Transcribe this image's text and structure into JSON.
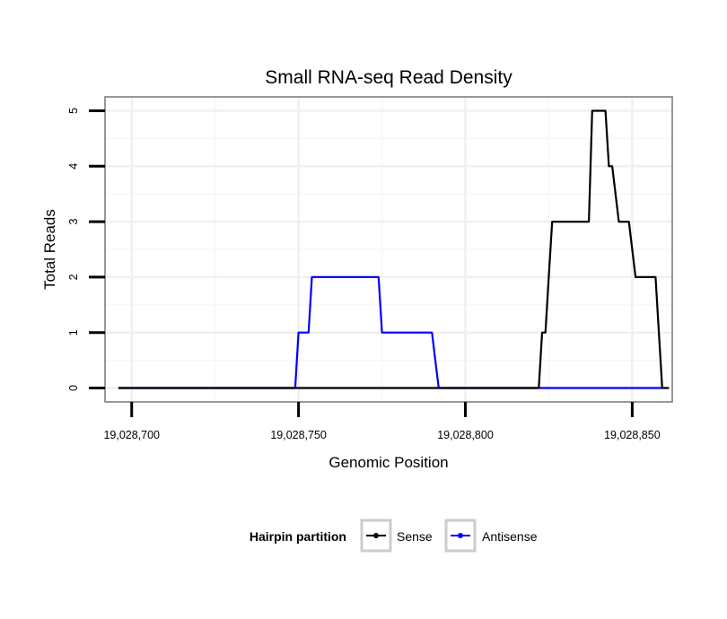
{
  "chart_data": {
    "type": "line",
    "title": "Small RNA-seq Read Density",
    "xlabel": "Genomic Position",
    "ylabel": "Total Reads",
    "xlim": [
      19028692,
      19028862
    ],
    "ylim": [
      -0.25,
      5.25
    ],
    "x_ticks": [
      19028700,
      19028750,
      19028800,
      19028850
    ],
    "x_tick_labels": [
      "19,028,700",
      "19,028,750",
      "19,028,800",
      "19,028,850"
    ],
    "y_ticks": [
      0,
      1,
      2,
      3,
      4,
      5
    ],
    "y_tick_labels": [
      "0",
      "1",
      "2",
      "3",
      "4",
      "5"
    ],
    "grid": true,
    "legend": {
      "title": "Hairpin partition",
      "position": "bottom"
    },
    "series": [
      {
        "name": "Sense",
        "color": "#000000",
        "x": [
          19028696,
          19028822,
          19028823,
          19028824,
          19028825,
          19028826,
          19028837,
          19028838,
          19028842,
          19028843,
          19028844,
          19028845,
          19028846,
          19028849,
          19028850,
          19028851,
          19028857,
          19028858,
          19028859,
          19028860,
          19028861
        ],
        "values": [
          0,
          0,
          1,
          1,
          2,
          3,
          3,
          5,
          5,
          4,
          4,
          3.5,
          3,
          3,
          2.5,
          2,
          2,
          1,
          0,
          0,
          0
        ]
      },
      {
        "name": "Antisense",
        "color": "#0000ff",
        "x": [
          19028696,
          19028749,
          19028750,
          19028753,
          19028754,
          19028774,
          19028775,
          19028790,
          19028791,
          19028792,
          19028822,
          19028859
        ],
        "values": [
          0,
          0,
          1,
          1,
          2,
          2,
          1,
          1,
          0.5,
          0,
          0,
          0
        ]
      }
    ]
  }
}
